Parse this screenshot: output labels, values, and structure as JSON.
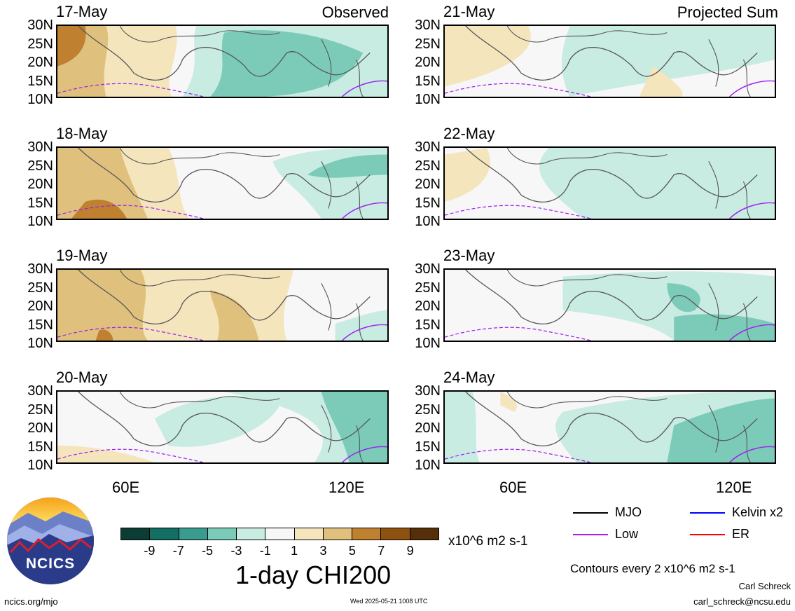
{
  "panels_left_title": "Observed",
  "panels_right_title": "Projected Sum",
  "left_dates": [
    "17-May",
    "18-May",
    "19-May",
    "20-May"
  ],
  "right_dates": [
    "21-May",
    "22-May",
    "23-May",
    "24-May"
  ],
  "lat_labels": [
    "30N",
    "25N",
    "20N",
    "15N",
    "10N"
  ],
  "lon_labels": [
    "60E",
    "120E"
  ],
  "colorbar": {
    "colors": [
      "#0c3d35",
      "#136e63",
      "#3a9c8f",
      "#7ccbb9",
      "#c8ebe2",
      "#f7f7f7",
      "#f5e5bd",
      "#dfc17d",
      "#bf8130",
      "#8d5210",
      "#542f08"
    ],
    "ticks": [
      "-9",
      "-7",
      "-5",
      "-3",
      "-1",
      "1",
      "3",
      "5",
      "7",
      "9"
    ],
    "units": "x10^6 m2 s-1",
    "title": "1-day CHI200"
  },
  "legend": [
    {
      "label": "MJO",
      "color": "#000000"
    },
    {
      "label": "Kelvin x2",
      "color": "#0000ff"
    },
    {
      "label": "Low",
      "color": "#a020f0"
    },
    {
      "label": "ER",
      "color": "#ff0000"
    }
  ],
  "contour_note": "Contours every 2 x10^6 m2 s-1",
  "author": "Carl Schreck",
  "email": "carl_schreck@ncsu.edu",
  "site": "ncics.org/mjo",
  "timestamp": "Wed 2025-05-21 1008 UTC",
  "logo_text": "NCICS"
}
